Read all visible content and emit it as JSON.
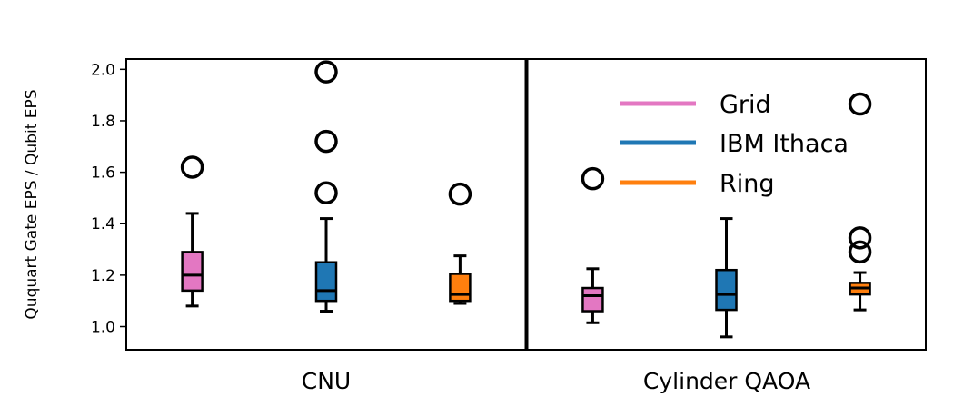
{
  "chart_data": {
    "type": "boxplot",
    "ylabel": "Ququart Gate EPS / Qubit EPS",
    "ylim": [
      0.91,
      2.04
    ],
    "yticks": [
      1.0,
      1.2,
      1.4,
      1.6,
      1.8,
      2.0
    ],
    "ytick_labels": [
      "1.0",
      "1.2",
      "1.4",
      "1.6",
      "1.8",
      "2.0"
    ],
    "grid": false,
    "legend_position": "top-right",
    "groups": [
      {
        "label": "CNU",
        "boxes": [
          {
            "series": "Grid",
            "whisker_low": 1.08,
            "q1": 1.14,
            "median": 1.2,
            "q3": 1.29,
            "whisker_high": 1.44,
            "outliers": [
              1.62
            ]
          },
          {
            "series": "IBM Ithaca",
            "whisker_low": 1.06,
            "q1": 1.1,
            "median": 1.14,
            "q3": 1.25,
            "whisker_high": 1.42,
            "outliers": [
              1.52,
              1.72,
              1.99
            ]
          },
          {
            "series": "Ring",
            "whisker_low": 1.09,
            "q1": 1.1,
            "median": 1.125,
            "q3": 1.205,
            "whisker_high": 1.275,
            "outliers": [
              1.515
            ]
          }
        ]
      },
      {
        "label": "Cylinder QAOA",
        "boxes": [
          {
            "series": "Grid",
            "whisker_low": 1.015,
            "q1": 1.06,
            "median": 1.12,
            "q3": 1.15,
            "whisker_high": 1.225,
            "outliers": [
              1.575
            ]
          },
          {
            "series": "IBM Ithaca",
            "whisker_low": 0.96,
            "q1": 1.065,
            "median": 1.125,
            "q3": 1.22,
            "whisker_high": 1.42,
            "outliers": []
          },
          {
            "series": "Ring",
            "whisker_low": 1.065,
            "q1": 1.125,
            "median": 1.15,
            "q3": 1.17,
            "whisker_high": 1.21,
            "outliers": [
              1.29,
              1.345,
              1.865
            ]
          }
        ]
      }
    ],
    "series": [
      {
        "name": "Grid",
        "color": "#e377c2"
      },
      {
        "name": "IBM Ithaca",
        "color": "#1f77b4"
      },
      {
        "name": "Ring",
        "color": "#ff7f0e"
      }
    ]
  }
}
